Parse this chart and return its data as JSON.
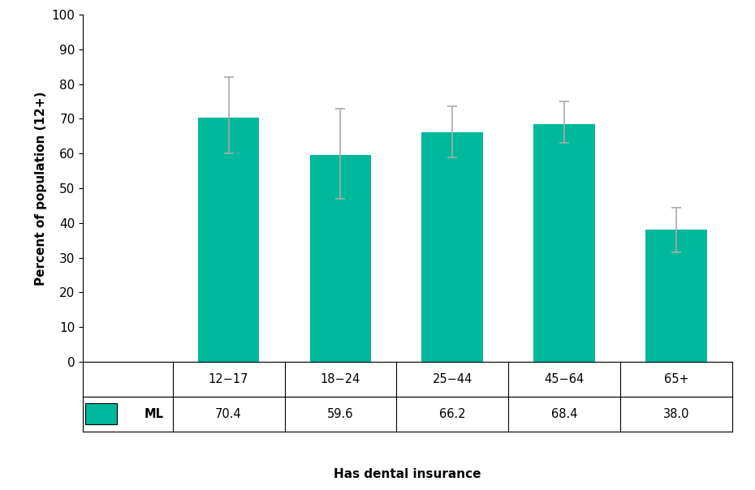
{
  "categories": [
    "12−17",
    "18−24",
    "25−44",
    "45−64",
    "65+"
  ],
  "values": [
    70.4,
    59.6,
    66.2,
    68.4,
    38.0
  ],
  "error_upper": [
    11.6,
    13.4,
    7.3,
    6.6,
    6.5
  ],
  "error_lower": [
    10.4,
    12.6,
    7.2,
    5.4,
    6.5
  ],
  "bar_color": "#00B89C",
  "error_color": "#aaaaaa",
  "ylabel": "Percent of population (12+)",
  "xlabel": "Has dental insurance",
  "ylim": [
    0,
    100
  ],
  "yticks": [
    0,
    10,
    20,
    30,
    40,
    50,
    60,
    70,
    80,
    90,
    100
  ],
  "table_label": "ML",
  "legend_color": "#00B89C",
  "xlabel_fontsize": 11,
  "ylabel_fontsize": 11,
  "tick_fontsize": 11,
  "table_fontsize": 10.5,
  "cat_fontsize": 10.5
}
